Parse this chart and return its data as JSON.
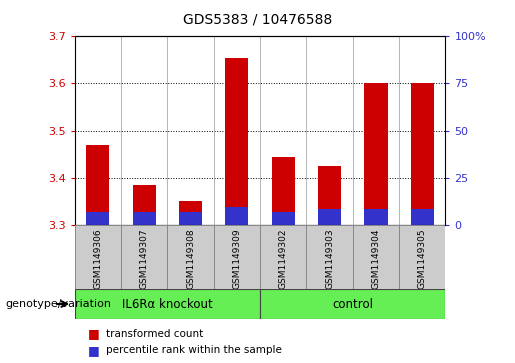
{
  "title": "GDS5383 / 10476588",
  "samples": [
    "GSM1149306",
    "GSM1149307",
    "GSM1149308",
    "GSM1149309",
    "GSM1149302",
    "GSM1149303",
    "GSM1149304",
    "GSM1149305"
  ],
  "transformed_count": [
    3.47,
    3.385,
    3.35,
    3.655,
    3.445,
    3.425,
    3.6,
    3.6
  ],
  "percentile_rank_top": [
    3.328,
    3.328,
    3.328,
    3.338,
    3.328,
    3.333,
    3.333,
    3.333
  ],
  "baseline": 3.3,
  "ylim_left": [
    3.3,
    3.7
  ],
  "ylim_right": [
    0,
    100
  ],
  "yticks_left": [
    3.3,
    3.4,
    3.5,
    3.6,
    3.7
  ],
  "yticks_right": [
    0,
    25,
    50,
    75,
    100
  ],
  "bar_color_red": "#cc0000",
  "bar_color_blue": "#3333cc",
  "group1_label": "IL6Rα knockout",
  "group2_label": "control",
  "group_color": "#66ee55",
  "sample_bg_color": "#cccccc",
  "group_label_text": "genotype/variation",
  "legend_red": "transformed count",
  "legend_blue": "percentile rank within the sample",
  "bar_width": 0.5
}
